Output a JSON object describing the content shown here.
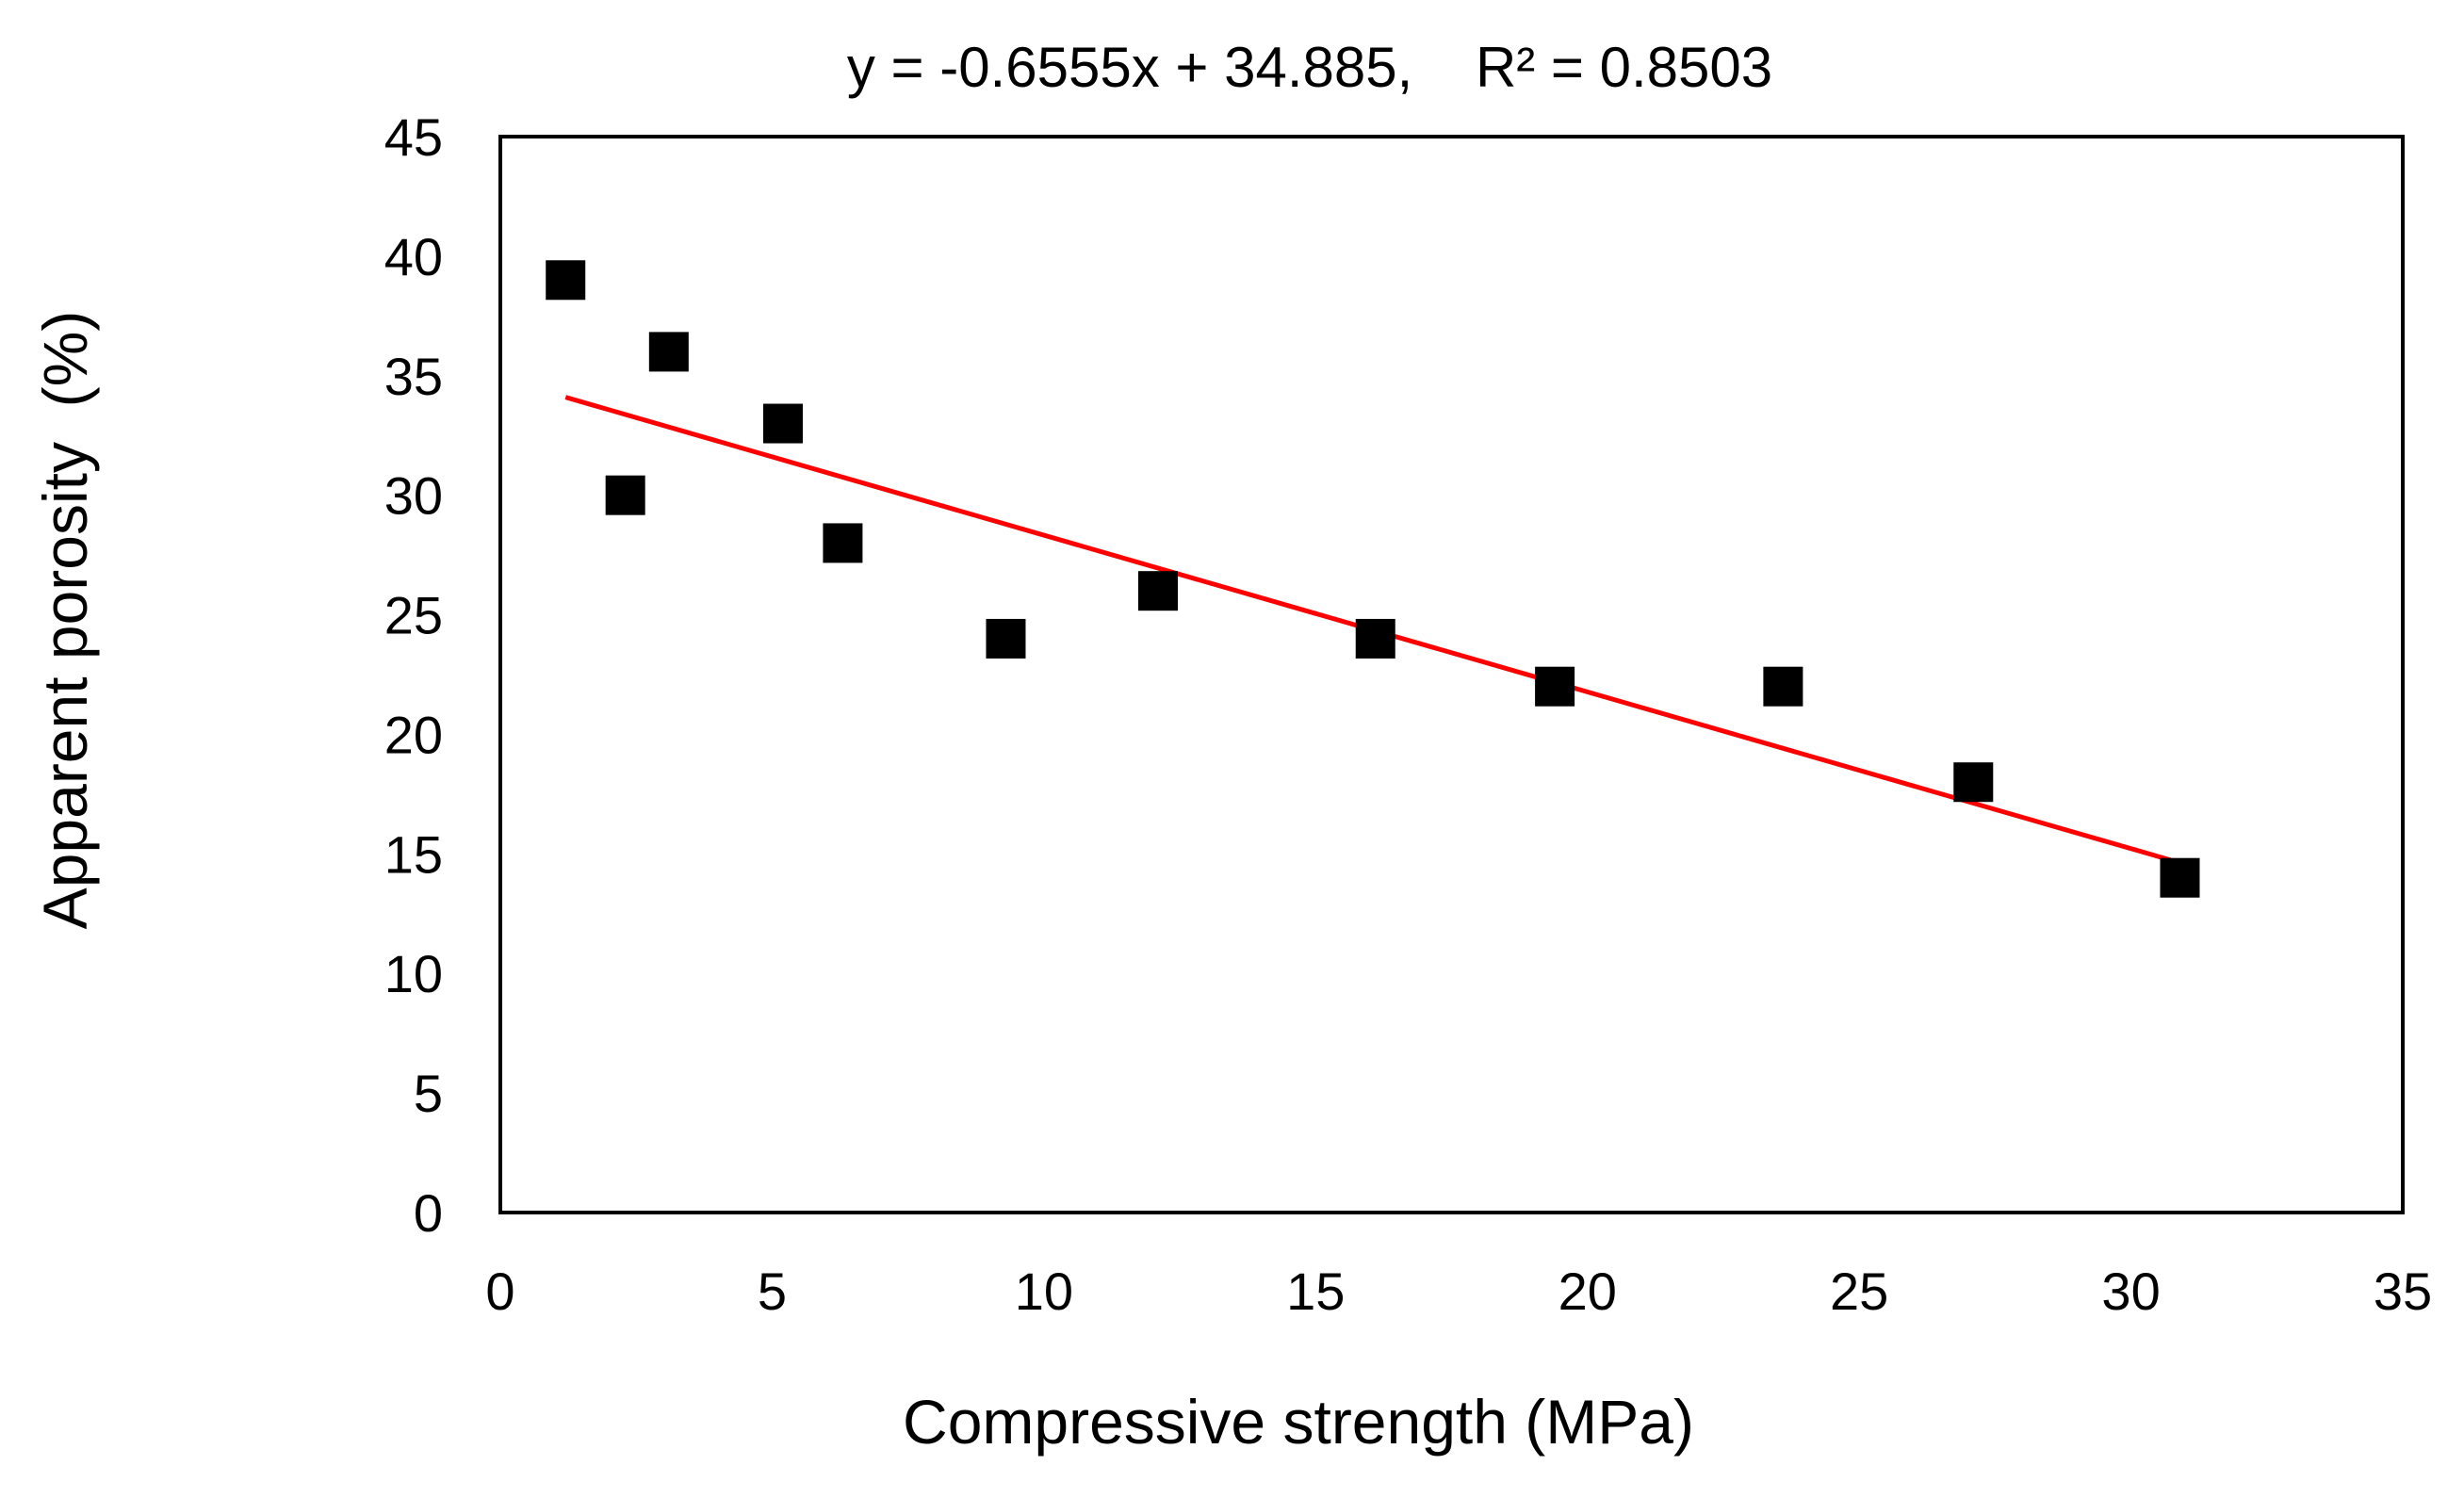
{
  "chart_data": {
    "type": "scatter",
    "title": "y = -0.6555x + 34.885,    R² = 0.8503",
    "xlabel": "Compressive strength (MPa)",
    "ylabel": "Apparent porosity  (%)",
    "xlim": [
      0,
      35
    ],
    "ylim": [
      0,
      45
    ],
    "xticks": [
      0,
      5,
      10,
      15,
      20,
      25,
      30,
      35
    ],
    "yticks": [
      0,
      5,
      10,
      15,
      20,
      25,
      30,
      35,
      40,
      45
    ],
    "grid": false,
    "series": [
      {
        "name": "Apparent porosity",
        "marker": "square",
        "color": "#000000",
        "points": [
          {
            "x": 1.2,
            "y": 39
          },
          {
            "x": 2.3,
            "y": 30
          },
          {
            "x": 3.1,
            "y": 36
          },
          {
            "x": 5.2,
            "y": 33
          },
          {
            "x": 6.3,
            "y": 28
          },
          {
            "x": 9.3,
            "y": 24
          },
          {
            "x": 12.1,
            "y": 26
          },
          {
            "x": 16.1,
            "y": 24
          },
          {
            "x": 19.4,
            "y": 22
          },
          {
            "x": 23.6,
            "y": 22
          },
          {
            "x": 27.1,
            "y": 18
          },
          {
            "x": 30.9,
            "y": 14
          }
        ]
      }
    ],
    "trendline": {
      "slope": -0.6555,
      "intercept": 34.885,
      "x_range": [
        1.2,
        30.9
      ],
      "color": "#ff0000"
    }
  }
}
